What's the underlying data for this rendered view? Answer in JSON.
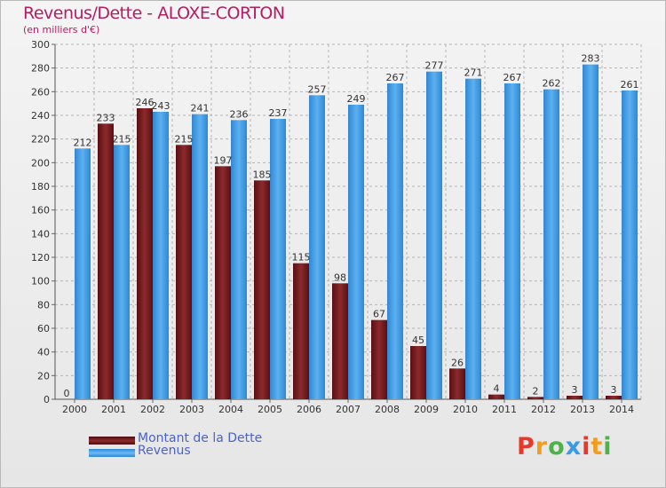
{
  "header": {
    "title": "Revenus/Dette - ALOXE-CORTON",
    "subtitle": "(en milliers d'€)"
  },
  "chart_data": {
    "type": "bar",
    "title": "Revenus/Dette - ALOXE-CORTON",
    "ylabel": "(en milliers d'€)",
    "xlabel": "",
    "ylim": [
      0,
      300
    ],
    "ytick_step": 20,
    "grid": true,
    "categories": [
      "2000",
      "2001",
      "2002",
      "2003",
      "2004",
      "2005",
      "2006",
      "2007",
      "2008",
      "2009",
      "2010",
      "2011",
      "2012",
      "2013",
      "2014"
    ],
    "series": [
      {
        "name": "Montant de la Dette",
        "color": "#7b1c1e",
        "values": [
          0,
          233,
          246,
          215,
          197,
          185,
          115,
          98,
          67,
          45,
          26,
          4,
          2,
          3,
          3
        ]
      },
      {
        "name": "Revenus",
        "color": "#3c9ae4",
        "values": [
          212,
          215,
          243,
          241,
          236,
          237,
          257,
          249,
          267,
          277,
          271,
          267,
          262,
          283,
          261
        ]
      }
    ]
  },
  "legend": {
    "items": [
      {
        "label": "Montant de la Dette",
        "color": "#6e1416"
      },
      {
        "label": "Revenus",
        "color": "#3c9ae4"
      }
    ]
  },
  "brand": {
    "letters": [
      "P",
      "r",
      "o",
      "x",
      "i",
      "t",
      "i"
    ],
    "colors": [
      "#e8382a",
      "#f39c1f",
      "#4db24a",
      "#3c9ae4",
      "#e8382a",
      "#f39c1f",
      "#4db24a"
    ]
  }
}
